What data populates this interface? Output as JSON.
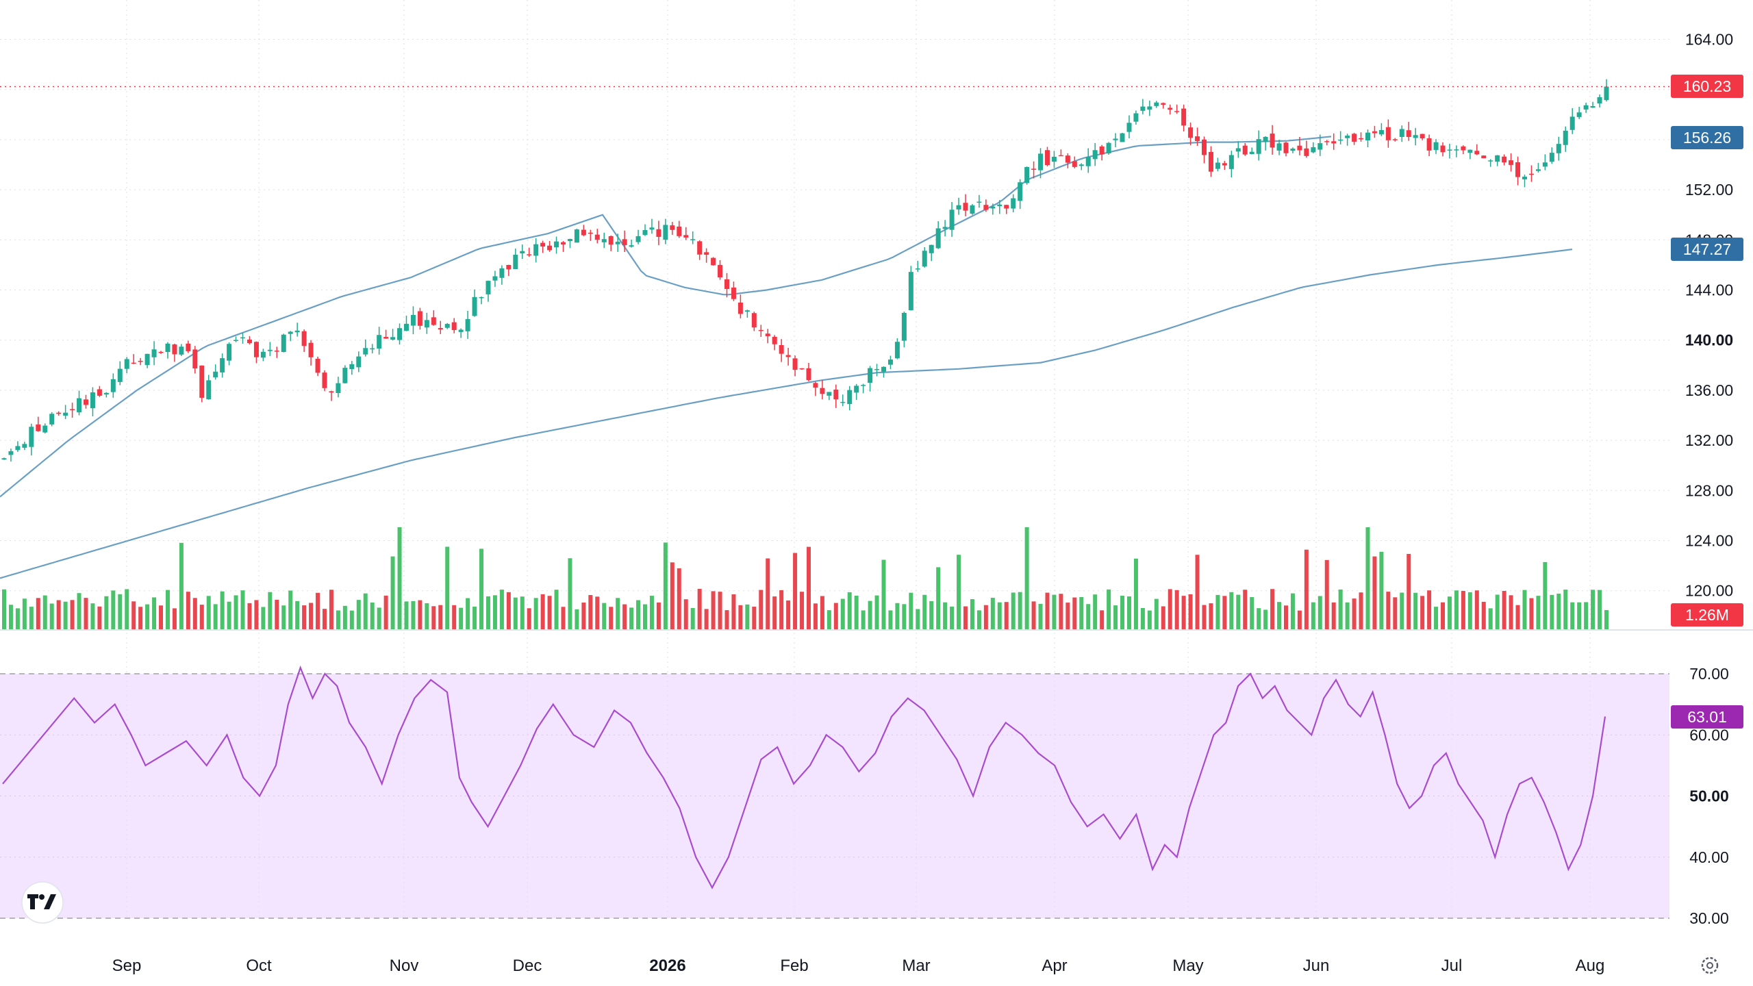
{
  "chart_data": [
    {
      "type": "candlestick",
      "panel": "price",
      "y_ticks": [
        "164.00",
        "160.00",
        "156.00",
        "152.00",
        "148.00",
        "144.00",
        "140.00",
        "136.00",
        "132.00",
        "128.00",
        "124.00",
        "120.00"
      ],
      "bold_tick": "140.00",
      "ylim": [
        117.1,
        166.1
      ],
      "last_price": 160.23,
      "last_price_label": "160.23",
      "ma_fast_label": "156.26",
      "ma_slow_label": "147.27",
      "volume_label": "1.26M",
      "x_labels": [
        "Sep",
        "Oct",
        "Nov",
        "Dec",
        "2026",
        "Feb",
        "Mar",
        "Apr",
        "May",
        "Jun",
        "Jul",
        "Aug"
      ],
      "bold_x_label": "2026",
      "bar_count": 236,
      "close_anchors": [
        [
          0,
          130.5
        ],
        [
          20,
          134
        ],
        [
          40,
          135.5
        ],
        [
          55,
          138.5
        ],
        [
          70,
          139.3
        ],
        [
          80,
          139
        ],
        [
          85,
          135.5
        ],
        [
          100,
          140.6
        ],
        [
          112,
          138.5
        ],
        [
          125,
          141
        ],
        [
          140,
          135
        ],
        [
          150,
          138.5
        ],
        [
          175,
          141.7
        ],
        [
          195,
          140.8
        ],
        [
          212,
          145.5
        ],
        [
          232,
          147.5
        ],
        [
          248,
          148.6
        ],
        [
          268,
          147.8
        ],
        [
          288,
          149
        ],
        [
          300,
          147
        ],
        [
          315,
          143
        ],
        [
          340,
          138
        ],
        [
          360,
          135
        ],
        [
          385,
          139.5
        ],
        [
          390,
          145
        ],
        [
          410,
          150.5
        ],
        [
          432,
          151
        ],
        [
          445,
          154.5
        ],
        [
          465,
          154
        ],
        [
          480,
          156.5
        ],
        [
          495,
          159
        ],
        [
          505,
          158
        ],
        [
          520,
          153.5
        ],
        [
          542,
          156
        ],
        [
          560,
          155
        ],
        [
          578,
          156.3
        ],
        [
          600,
          156.5
        ],
        [
          620,
          155.2
        ],
        [
          640,
          154.5
        ],
        [
          658,
          153
        ],
        [
          675,
          157.5
        ],
        [
          690,
          160.2
        ]
      ],
      "ma_fast_anchors": [
        [
          0,
          127.5
        ],
        [
          100,
          132
        ],
        [
          200,
          136
        ],
        [
          300,
          139.5
        ],
        [
          400,
          141.5
        ],
        [
          500,
          143.5
        ],
        [
          600,
          145
        ],
        [
          700,
          147.3
        ],
        [
          800,
          148.5
        ],
        [
          880,
          150
        ],
        [
          940,
          145.2
        ],
        [
          1000,
          144.2
        ],
        [
          1060,
          143.6
        ],
        [
          1120,
          144
        ],
        [
          1200,
          144.8
        ],
        [
          1300,
          146.5
        ],
        [
          1380,
          148.8
        ],
        [
          1460,
          151
        ],
        [
          1500,
          152.8
        ],
        [
          1580,
          154.5
        ],
        [
          1660,
          155.5
        ],
        [
          1760,
          155.8
        ],
        [
          1800,
          155.8
        ],
        [
          1880,
          155.9
        ],
        [
          1947,
          156.26
        ]
      ],
      "ma_slow_anchors": [
        [
          0,
          121
        ],
        [
          150,
          123.4
        ],
        [
          300,
          125.8
        ],
        [
          450,
          128.2
        ],
        [
          600,
          130.4
        ],
        [
          750,
          132.2
        ],
        [
          900,
          133.8
        ],
        [
          1050,
          135.4
        ],
        [
          1200,
          136.8
        ],
        [
          1280,
          137.4
        ],
        [
          1400,
          137.7
        ],
        [
          1520,
          138.2
        ],
        [
          1600,
          139.2
        ],
        [
          1700,
          140.8
        ],
        [
          1800,
          142.6
        ],
        [
          1900,
          144.2
        ],
        [
          2000,
          145.2
        ],
        [
          2100,
          146
        ],
        [
          2200,
          146.6
        ],
        [
          2300,
          147.27
        ]
      ]
    },
    {
      "type": "line",
      "panel": "rsi",
      "y_ticks": [
        "70.00",
        "60.00",
        "50.00",
        "40.00",
        "30.00"
      ],
      "bold_tick": "50.00",
      "ylim": [
        30,
        70
      ],
      "band": [
        30,
        70
      ],
      "last_value": 63.01,
      "last_value_label": "63.01",
      "anchors": [
        [
          0,
          52
        ],
        [
          15,
          58
        ],
        [
          25,
          62
        ],
        [
          35,
          66
        ],
        [
          45,
          62
        ],
        [
          55,
          65
        ],
        [
          63,
          60
        ],
        [
          70,
          55
        ],
        [
          80,
          57
        ],
        [
          90,
          59
        ],
        [
          100,
          55
        ],
        [
          110,
          60
        ],
        [
          118,
          53
        ],
        [
          126,
          50
        ],
        [
          134,
          55
        ],
        [
          140,
          65
        ],
        [
          146,
          71
        ],
        [
          152,
          66
        ],
        [
          158,
          70
        ],
        [
          164,
          68
        ],
        [
          170,
          62
        ],
        [
          178,
          58
        ],
        [
          186,
          52
        ],
        [
          194,
          60
        ],
        [
          202,
          66
        ],
        [
          210,
          69
        ],
        [
          218,
          67
        ],
        [
          224,
          53
        ],
        [
          230,
          49
        ],
        [
          238,
          45
        ],
        [
          246,
          50
        ],
        [
          254,
          55
        ],
        [
          262,
          61
        ],
        [
          270,
          65
        ],
        [
          280,
          60
        ],
        [
          290,
          58
        ],
        [
          300,
          64
        ],
        [
          308,
          62
        ],
        [
          316,
          57
        ],
        [
          324,
          53
        ],
        [
          332,
          48
        ],
        [
          340,
          40
        ],
        [
          348,
          35
        ],
        [
          356,
          40
        ],
        [
          364,
          48
        ],
        [
          372,
          56
        ],
        [
          380,
          58
        ],
        [
          388,
          52
        ],
        [
          396,
          55
        ],
        [
          404,
          60
        ],
        [
          412,
          58
        ],
        [
          420,
          54
        ],
        [
          428,
          57
        ],
        [
          436,
          63
        ],
        [
          444,
          66
        ],
        [
          452,
          64
        ],
        [
          460,
          60
        ],
        [
          468,
          56
        ],
        [
          476,
          50
        ],
        [
          484,
          58
        ],
        [
          492,
          62
        ],
        [
          500,
          60
        ],
        [
          508,
          57
        ],
        [
          516,
          55
        ],
        [
          524,
          49
        ],
        [
          532,
          45
        ],
        [
          540,
          47
        ],
        [
          548,
          43
        ],
        [
          556,
          47
        ],
        [
          564,
          38
        ],
        [
          570,
          42
        ],
        [
          576,
          40
        ],
        [
          582,
          48
        ],
        [
          588,
          54
        ],
        [
          594,
          60
        ],
        [
          600,
          62
        ],
        [
          606,
          68
        ],
        [
          612,
          70
        ],
        [
          618,
          66
        ],
        [
          624,
          68
        ],
        [
          630,
          64
        ],
        [
          636,
          62
        ],
        [
          642,
          60
        ],
        [
          648,
          66
        ],
        [
          654,
          69
        ],
        [
          660,
          65
        ],
        [
          666,
          63
        ],
        [
          672,
          67
        ],
        [
          678,
          60
        ],
        [
          684,
          52
        ],
        [
          690,
          48
        ],
        [
          696,
          50
        ],
        [
          702,
          55
        ],
        [
          708,
          57
        ],
        [
          714,
          52
        ],
        [
          720,
          49
        ],
        [
          726,
          46
        ],
        [
          732,
          40
        ],
        [
          738,
          47
        ],
        [
          744,
          52
        ],
        [
          750,
          53
        ],
        [
          756,
          49
        ],
        [
          762,
          44
        ],
        [
          768,
          38
        ],
        [
          774,
          42
        ],
        [
          780,
          50
        ],
        [
          786,
          63.01
        ]
      ]
    }
  ]
}
